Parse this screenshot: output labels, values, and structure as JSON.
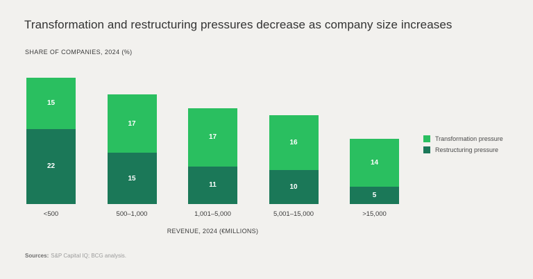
{
  "header": {
    "title": "Transformation and restructuring pressures decrease as company size increases",
    "subtitle": "SHARE OF COMPANIES, 2024 (%)"
  },
  "chart_data": {
    "type": "bar",
    "stacked": true,
    "title": "Transformation and restructuring pressures decrease as company size increases",
    "subtitle": "SHARE OF COMPANIES, 2024 (%)",
    "categories": [
      "<500",
      "500–1,000",
      "1,001–5,000",
      "5,001–15,000",
      ">15,000"
    ],
    "series": [
      {
        "name": "Transformation pressure",
        "color": "#2abf60",
        "values": [
          15,
          17,
          17,
          16,
          14
        ]
      },
      {
        "name": "Restructuring pressure",
        "color": "#1b7858",
        "values": [
          22,
          15,
          11,
          10,
          5
        ]
      }
    ],
    "xlabel": "REVENUE, 2024 (€MILLIONS)",
    "ylabel": "",
    "ylim": [
      0,
      40
    ],
    "grid": false,
    "legend_position": "right",
    "value_labels": "inside-center",
    "stack_order_top_to_bottom": [
      "Transformation pressure",
      "Restructuring pressure"
    ]
  },
  "footer": {
    "sources_label": "Sources:",
    "sources_text": "S&P Capital IQ; BCG analysis."
  },
  "colors": {
    "background": "#f2f1ee",
    "transformation_green": "#2abf60",
    "restructuring_green": "#1b7858",
    "text_dark": "#323232"
  }
}
